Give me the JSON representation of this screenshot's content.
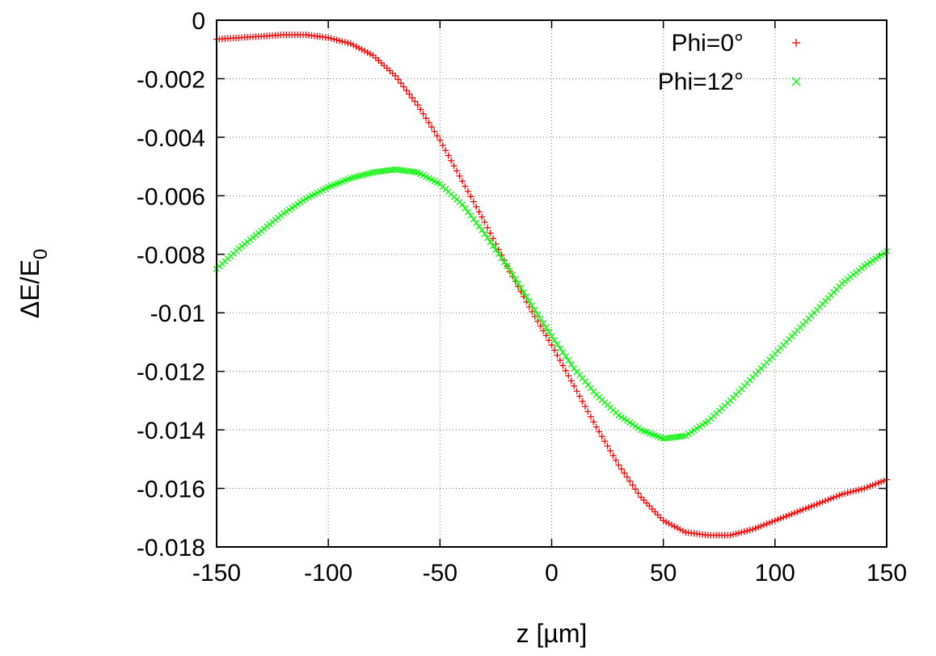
{
  "chart_data": {
    "type": "scatter",
    "xlabel": "z [µm]",
    "ylabel": "ΔE/E",
    "ylabel_subscript": "0",
    "xlim": [
      -150,
      150
    ],
    "ylim": [
      -0.018,
      0
    ],
    "xticks": [
      -150,
      -100,
      -50,
      0,
      50,
      100,
      150
    ],
    "xtick_labels": [
      "-150",
      "-100",
      "-50",
      "0",
      "50",
      "100",
      "150"
    ],
    "yticks": [
      0,
      -0.002,
      -0.004,
      -0.006,
      -0.008,
      -0.01,
      -0.012,
      -0.014,
      -0.016,
      -0.018
    ],
    "ytick_labels": [
      "0",
      "-0.002",
      "-0.004",
      "-0.006",
      "-0.008",
      "-0.01",
      "-0.012",
      "-0.014",
      "-0.016",
      "-0.018"
    ],
    "grid": true,
    "legend_position": "top-right",
    "series": [
      {
        "name": "Phi=0°",
        "marker": "+",
        "color": "#ff0000",
        "x": [
          -150,
          -140,
          -130,
          -120,
          -110,
          -100,
          -90,
          -80,
          -70,
          -60,
          -50,
          -40,
          -30,
          -20,
          -10,
          0,
          10,
          20,
          30,
          40,
          50,
          60,
          70,
          80,
          90,
          100,
          110,
          120,
          130,
          140,
          150
        ],
        "y": [
          -0.00065,
          -0.0006,
          -0.00055,
          -0.0005,
          -0.0005,
          -0.0006,
          -0.0008,
          -0.0012,
          -0.0019,
          -0.0029,
          -0.0041,
          -0.0055,
          -0.0069,
          -0.0084,
          -0.0098,
          -0.0111,
          -0.0125,
          -0.0139,
          -0.0152,
          -0.0163,
          -0.0171,
          -0.0175,
          -0.0176,
          -0.0176,
          -0.0174,
          -0.0171,
          -0.0168,
          -0.0165,
          -0.0162,
          -0.016,
          -0.0157
        ]
      },
      {
        "name": "Phi=12°",
        "marker": "x",
        "color": "#00ff00",
        "x": [
          -150,
          -140,
          -130,
          -120,
          -110,
          -100,
          -90,
          -80,
          -70,
          -60,
          -50,
          -40,
          -30,
          -20,
          -10,
          0,
          10,
          20,
          30,
          40,
          50,
          60,
          70,
          80,
          90,
          100,
          110,
          120,
          130,
          140,
          150
        ],
        "y": [
          -0.0085,
          -0.0078,
          -0.0072,
          -0.0066,
          -0.0061,
          -0.0057,
          -0.0054,
          -0.0052,
          -0.0051,
          -0.0052,
          -0.0056,
          -0.0063,
          -0.0073,
          -0.0084,
          -0.0096,
          -0.0108,
          -0.0119,
          -0.0128,
          -0.0135,
          -0.014,
          -0.0143,
          -0.0142,
          -0.0137,
          -0.013,
          -0.0122,
          -0.0114,
          -0.0106,
          -0.0098,
          -0.009,
          -0.0084,
          -0.0079
        ]
      }
    ]
  }
}
